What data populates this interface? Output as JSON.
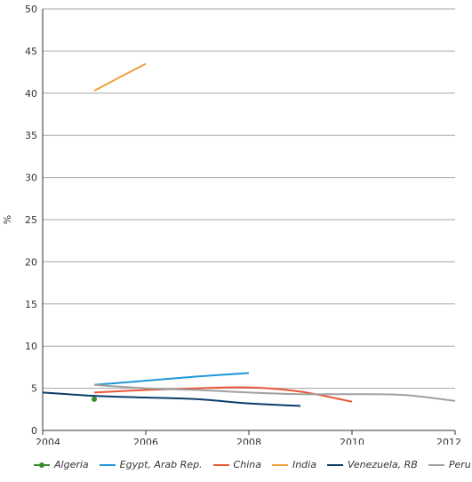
{
  "chart_data": {
    "type": "line",
    "title": "",
    "xlabel": "",
    "ylabel": "%",
    "xlim": [
      2004,
      2012
    ],
    "ylim": [
      0,
      50
    ],
    "xticks": [
      "2004",
      "2006",
      "2008",
      "2010",
      "2012"
    ],
    "yticks": [
      "0",
      "5",
      "10",
      "15",
      "20",
      "25",
      "30",
      "35",
      "40",
      "45",
      "50"
    ],
    "grid": true,
    "legend_position": "bottom",
    "series": [
      {
        "name": "Algeria",
        "color": "#3a8a2e",
        "marker": "dot",
        "x": [
          2005
        ],
        "y": [
          3.7
        ]
      },
      {
        "name": "Egypt, Arab Rep.",
        "color": "#1f97d6",
        "x": [
          2005,
          2006,
          2007,
          2008
        ],
        "y": [
          5.4,
          5.9,
          6.4,
          6.8
        ]
      },
      {
        "name": "China",
        "color": "#e8583a",
        "x": [
          2005,
          2006,
          2007,
          2008,
          2009,
          2010
        ],
        "y": [
          4.5,
          4.8,
          5.0,
          5.1,
          4.6,
          3.4
        ]
      },
      {
        "name": "India",
        "color": "#f0a040",
        "x": [
          2005,
          2006
        ],
        "y": [
          40.3,
          43.5
        ]
      },
      {
        "name": "Venezuela, RB",
        "color": "#0b3d6b",
        "x": [
          2004,
          2005,
          2006,
          2007,
          2008,
          2009
        ],
        "y": [
          4.5,
          4.1,
          3.9,
          3.7,
          3.2,
          2.9
        ]
      },
      {
        "name": "Peru",
        "color": "#a0a0a0",
        "x": [
          2005,
          2006,
          2007,
          2008,
          2009,
          2010,
          2011,
          2012
        ],
        "y": [
          5.4,
          5.0,
          4.8,
          4.5,
          4.3,
          4.3,
          4.2,
          3.5
        ]
      }
    ]
  }
}
